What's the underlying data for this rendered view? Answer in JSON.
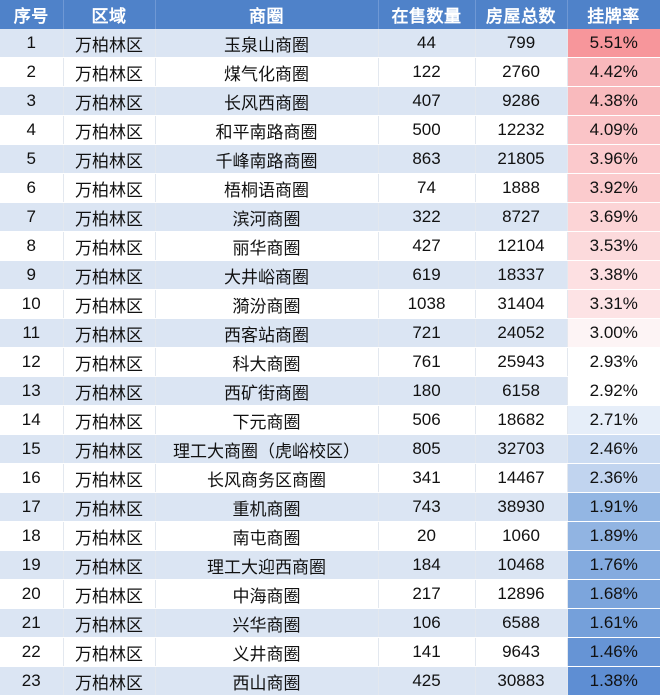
{
  "headers": [
    "序号",
    "区域",
    "商圈",
    "在售数量",
    "房屋总数",
    "挂牌率"
  ],
  "rows": [
    {
      "no": "1",
      "district": "万柏林区",
      "area": "玉泉山商圈",
      "on_sale": "44",
      "total": "799",
      "rate": "5.51%",
      "rate_color": "#f7969b"
    },
    {
      "no": "2",
      "district": "万柏林区",
      "area": "煤气化商圈",
      "on_sale": "122",
      "total": "2760",
      "rate": "4.42%",
      "rate_color": "#f9b8bc"
    },
    {
      "no": "3",
      "district": "万柏林区",
      "area": "长风西商圈",
      "on_sale": "407",
      "total": "9286",
      "rate": "4.38%",
      "rate_color": "#f9babd"
    },
    {
      "no": "4",
      "district": "万柏林区",
      "area": "和平南路商圈",
      "on_sale": "500",
      "total": "12232",
      "rate": "4.09%",
      "rate_color": "#fac4c7"
    },
    {
      "no": "5",
      "district": "万柏林区",
      "area": "千峰南路商圈",
      "on_sale": "863",
      "total": "21805",
      "rate": "3.96%",
      "rate_color": "#fbc9cc"
    },
    {
      "no": "6",
      "district": "万柏林区",
      "area": "梧桐语商圈",
      "on_sale": "74",
      "total": "1888",
      "rate": "3.92%",
      "rate_color": "#fbcbcd"
    },
    {
      "no": "7",
      "district": "万柏林区",
      "area": "滨河商圈",
      "on_sale": "322",
      "total": "8727",
      "rate": "3.69%",
      "rate_color": "#fcd4d6"
    },
    {
      "no": "8",
      "district": "万柏林区",
      "area": "丽华商圈",
      "on_sale": "427",
      "total": "12104",
      "rate": "3.53%",
      "rate_color": "#fcdadc"
    },
    {
      "no": "9",
      "district": "万柏林区",
      "area": "大井峪商圈",
      "on_sale": "619",
      "total": "18337",
      "rate": "3.38%",
      "rate_color": "#fde0e2"
    },
    {
      "no": "10",
      "district": "万柏林区",
      "area": "漪汾商圈",
      "on_sale": "1038",
      "total": "31404",
      "rate": "3.31%",
      "rate_color": "#fde3e5"
    },
    {
      "no": "11",
      "district": "万柏林区",
      "area": "西客站商圈",
      "on_sale": "721",
      "total": "24052",
      "rate": "3.00%",
      "rate_color": "#fdf4f5"
    },
    {
      "no": "12",
      "district": "万柏林区",
      "area": "科大商圈",
      "on_sale": "761",
      "total": "25943",
      "rate": "2.93%",
      "rate_color": "#ffffff"
    },
    {
      "no": "13",
      "district": "万柏林区",
      "area": "西矿街商圈",
      "on_sale": "180",
      "total": "6158",
      "rate": "2.92%",
      "rate_color": "#ffffff"
    },
    {
      "no": "14",
      "district": "万柏林区",
      "area": "下元商圈",
      "on_sale": "506",
      "total": "18682",
      "rate": "2.71%",
      "rate_color": "#e6eef9"
    },
    {
      "no": "15",
      "district": "万柏林区",
      "area": "理工大商圈（虎峪校区）",
      "on_sale": "805",
      "total": "32703",
      "rate": "2.46%",
      "rate_color": "#ccdcf2"
    },
    {
      "no": "16",
      "district": "万柏林区",
      "area": "长风商务区商圈",
      "on_sale": "341",
      "total": "14467",
      "rate": "2.36%",
      "rate_color": "#c1d4ef"
    },
    {
      "no": "17",
      "district": "万柏林区",
      "area": "重机商圈",
      "on_sale": "743",
      "total": "38930",
      "rate": "1.91%",
      "rate_color": "#93b6e3"
    },
    {
      "no": "18",
      "district": "万柏林区",
      "area": "南屯商圈",
      "on_sale": "20",
      "total": "1060",
      "rate": "1.89%",
      "rate_color": "#91b4e2"
    },
    {
      "no": "19",
      "district": "万柏林区",
      "area": "理工大迎西商圈",
      "on_sale": "184",
      "total": "10468",
      "rate": "1.76%",
      "rate_color": "#84abdf"
    },
    {
      "no": "20",
      "district": "万柏林区",
      "area": "中海商圈",
      "on_sale": "217",
      "total": "12896",
      "rate": "1.68%",
      "rate_color": "#7ca5dc"
    },
    {
      "no": "21",
      "district": "万柏林区",
      "area": "兴华商圈",
      "on_sale": "106",
      "total": "6588",
      "rate": "1.61%",
      "rate_color": "#75a0da"
    },
    {
      "no": "22",
      "district": "万柏林区",
      "area": "义井商圈",
      "on_sale": "141",
      "total": "9643",
      "rate": "1.46%",
      "rate_color": "#6694d5"
    },
    {
      "no": "23",
      "district": "万柏林区",
      "area": "西山商圈",
      "on_sale": "425",
      "total": "30883",
      "rate": "1.38%",
      "rate_color": "#5e8ed3"
    }
  ]
}
